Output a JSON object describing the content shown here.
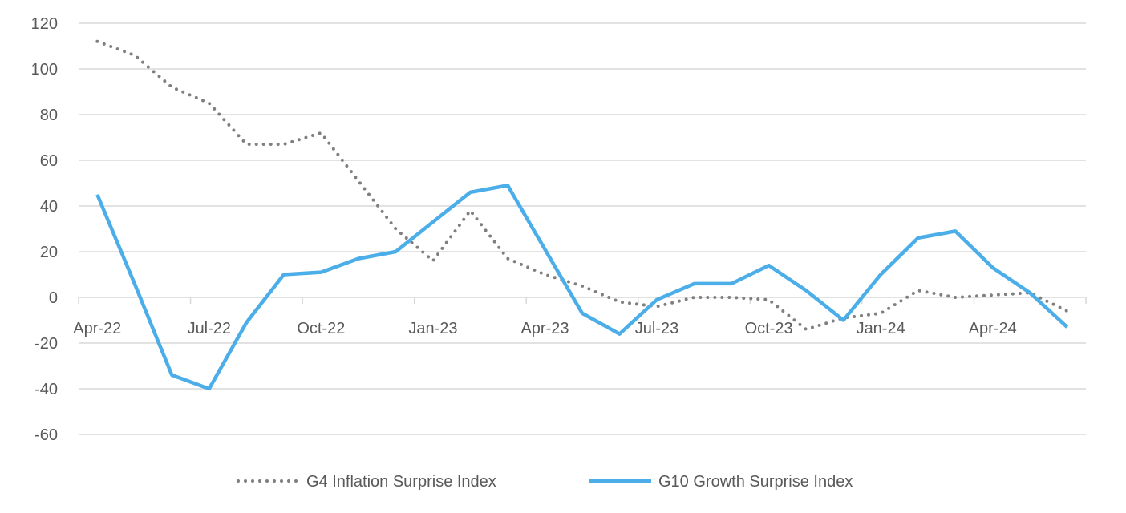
{
  "chart_data": {
    "type": "line",
    "title": "",
    "xlabel": "",
    "ylabel": "",
    "ylim": [
      -60,
      120
    ],
    "yticks": [
      120,
      100,
      80,
      60,
      40,
      20,
      0,
      -20,
      -40,
      -60
    ],
    "grid": true,
    "legend_position": "bottom",
    "x": [
      "Apr-22",
      "May-22",
      "Jun-22",
      "Jul-22",
      "Aug-22",
      "Sep-22",
      "Oct-22",
      "Nov-22",
      "Dec-22",
      "Jan-23",
      "Feb-23",
      "Mar-23",
      "Apr-23",
      "May-23",
      "Jun-23",
      "Jul-23",
      "Aug-23",
      "Sep-23",
      "Oct-23",
      "Nov-23",
      "Dec-23",
      "Jan-24",
      "Feb-24",
      "Mar-24",
      "Apr-24",
      "May-24",
      "Jun-24"
    ],
    "xtick_labels": [
      "Apr-22",
      "Jul-22",
      "Oct-22",
      "Jan-23",
      "Apr-23",
      "Jul-23",
      "Oct-23",
      "Jan-24",
      "Apr-24"
    ],
    "series": [
      {
        "name": "G4 Inflation Surprise Index",
        "color": "#7f7f7f",
        "style": "dotted",
        "values": [
          112,
          106,
          92,
          85,
          67,
          67,
          72,
          51,
          30,
          16,
          38,
          17,
          10,
          5,
          -2,
          -4,
          0,
          0,
          -1,
          -14,
          -9,
          -7,
          3,
          0,
          1,
          2,
          -6
        ]
      },
      {
        "name": "G10 Growth Surprise Index",
        "color": "#4baee8",
        "style": "solid",
        "values": [
          45,
          6,
          -34,
          -40,
          -11,
          10,
          11,
          17,
          20,
          33,
          46,
          49,
          21,
          -7,
          -16,
          -1,
          6,
          6,
          14,
          3,
          -10,
          10,
          26,
          29,
          13,
          2,
          -13
        ]
      }
    ]
  }
}
